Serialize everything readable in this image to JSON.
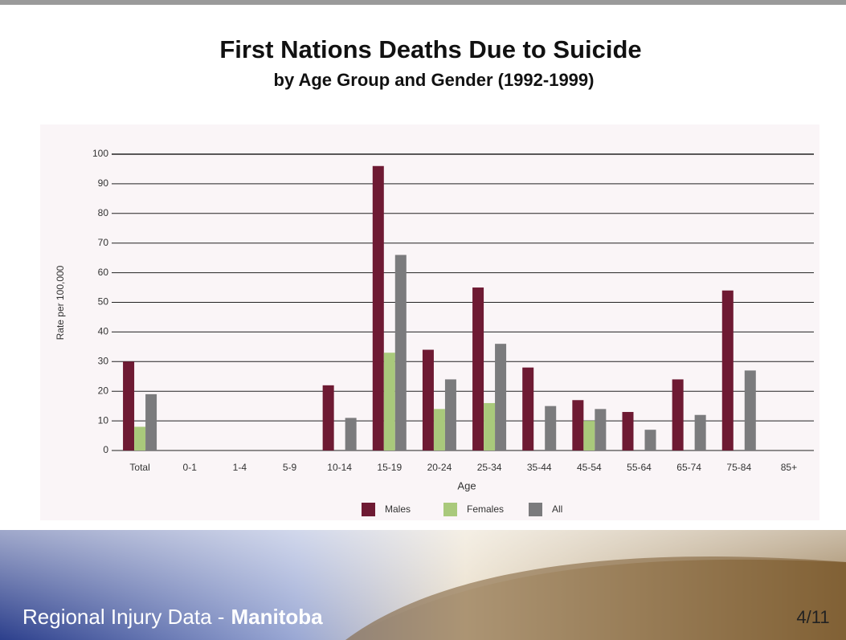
{
  "chart_data": {
    "type": "bar",
    "title": "First Nations Deaths Due to Suicide",
    "subtitle": "by Age Group and Gender (1992-1999)",
    "x_label": "Age",
    "y_label": "Rate per 100,000",
    "categories": [
      "Total",
      "0-1",
      "1-4",
      "5-9",
      "10-14",
      "15-19",
      "20-24",
      "25-34",
      "35-44",
      "45-54",
      "55-64",
      "65-74",
      "75-84",
      "85+"
    ],
    "series": [
      {
        "name": "Males",
        "color": "#6e1a33",
        "values": [
          30,
          null,
          null,
          null,
          22,
          96,
          34,
          55,
          28,
          17,
          13,
          24,
          54,
          null
        ]
      },
      {
        "name": "Females",
        "color": "#a9c97b",
        "values": [
          8,
          null,
          null,
          null,
          null,
          33,
          14,
          16,
          null,
          10,
          null,
          null,
          null,
          null
        ]
      },
      {
        "name": "All",
        "color": "#7b7b7d",
        "values": [
          19,
          null,
          null,
          null,
          11,
          66,
          24,
          36,
          15,
          14,
          7,
          12,
          27,
          null
        ]
      }
    ],
    "ylim": [
      0,
      100
    ],
    "yticks": [
      0,
      10,
      20,
      30,
      40,
      50,
      60,
      70,
      80,
      90,
      100
    ],
    "grid": true,
    "legend": "bottom"
  },
  "footer": {
    "text": "Regional Injury Data -",
    "bold": "Manitoba",
    "page": "4/11"
  }
}
